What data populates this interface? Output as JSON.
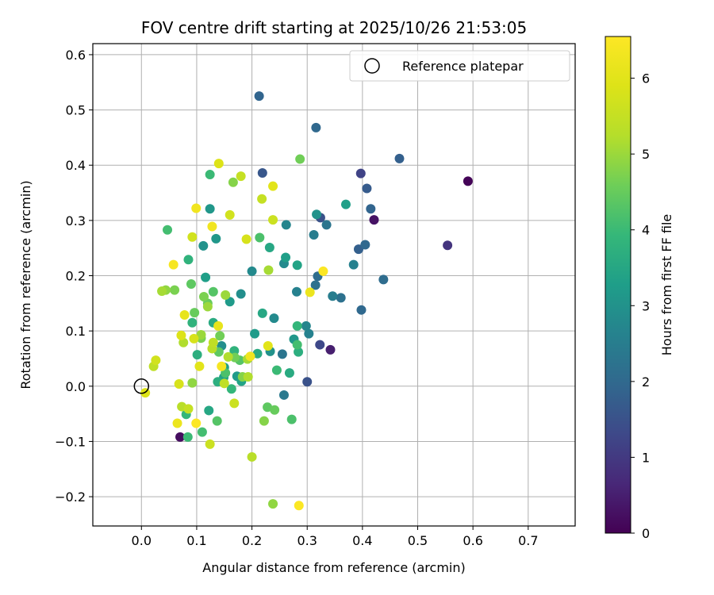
{
  "chart_data": {
    "type": "scatter",
    "title": "FOV centre drift starting at 2025/10/26 21:53:05",
    "xlabel": "Angular distance from reference (arcmin)",
    "ylabel": "Rotation from reference (arcmin)",
    "xlim": [
      -0.088,
      0.785
    ],
    "ylim": [
      -0.253,
      0.62
    ],
    "xticks": [
      0.0,
      0.1,
      0.2,
      0.3,
      0.4,
      0.5,
      0.6,
      0.7
    ],
    "xtick_labels": [
      "0.0",
      "0.1",
      "0.2",
      "0.3",
      "0.4",
      "0.5",
      "0.6",
      "0.7"
    ],
    "yticks": [
      -0.2,
      -0.1,
      0.0,
      0.1,
      0.2,
      0.3,
      0.4,
      0.5,
      0.6
    ],
    "ytick_labels": [
      "−0.2",
      "−0.1",
      "0.0",
      "0.1",
      "0.2",
      "0.3",
      "0.4",
      "0.5",
      "0.6"
    ],
    "grid": true,
    "legend": {
      "position": "top-right",
      "entries": [
        "Reference platepar"
      ]
    },
    "reference_point": {
      "x": 0.0,
      "y": 0.0
    },
    "colorbar": {
      "label": "Hours from first FF file",
      "range": [
        0,
        6.55
      ],
      "ticks": [
        0,
        1,
        2,
        3,
        4,
        5,
        6
      ],
      "tick_labels": [
        "0",
        "1",
        "2",
        "3",
        "4",
        "5",
        "6"
      ],
      "colormap": "viridis"
    },
    "series": [
      {
        "points": [
          {
            "x": 0.591,
            "y": 0.371,
            "c": 0.05
          },
          {
            "x": 0.07,
            "y": -0.092,
            "c": 0.2
          },
          {
            "x": 0.421,
            "y": 0.301,
            "c": 0.3
          },
          {
            "x": 0.342,
            "y": 0.066,
            "c": 0.5
          },
          {
            "x": 0.554,
            "y": 0.255,
            "c": 0.9
          },
          {
            "x": 0.397,
            "y": 0.385,
            "c": 1.2
          },
          {
            "x": 0.323,
            "y": 0.075,
            "c": 1.3
          },
          {
            "x": 0.3,
            "y": 0.008,
            "c": 1.5
          },
          {
            "x": 0.324,
            "y": 0.305,
            "c": 1.5
          },
          {
            "x": 0.219,
            "y": 0.386,
            "c": 1.6
          },
          {
            "x": 0.408,
            "y": 0.358,
            "c": 1.7
          },
          {
            "x": 0.467,
            "y": 0.412,
            "c": 1.8
          },
          {
            "x": 0.393,
            "y": 0.248,
            "c": 1.8
          },
          {
            "x": 0.415,
            "y": 0.321,
            "c": 1.9
          },
          {
            "x": 0.213,
            "y": 0.525,
            "c": 1.9
          },
          {
            "x": 0.316,
            "y": 0.468,
            "c": 2.0
          },
          {
            "x": 0.398,
            "y": 0.138,
            "c": 2.0
          },
          {
            "x": 0.405,
            "y": 0.256,
            "c": 2.0
          },
          {
            "x": 0.438,
            "y": 0.193,
            "c": 2.1
          },
          {
            "x": 0.319,
            "y": 0.199,
            "c": 2.1
          },
          {
            "x": 0.361,
            "y": 0.16,
            "c": 2.2
          },
          {
            "x": 0.315,
            "y": 0.183,
            "c": 2.2
          },
          {
            "x": 0.335,
            "y": 0.292,
            "c": 2.3
          },
          {
            "x": 0.255,
            "y": 0.058,
            "c": 2.3
          },
          {
            "x": 0.258,
            "y": -0.016,
            "c": 2.4
          },
          {
            "x": 0.346,
            "y": 0.163,
            "c": 2.5
          },
          {
            "x": 0.312,
            "y": 0.274,
            "c": 2.5
          },
          {
            "x": 0.384,
            "y": 0.22,
            "c": 2.6
          },
          {
            "x": 0.303,
            "y": 0.095,
            "c": 2.6
          },
          {
            "x": 0.281,
            "y": 0.171,
            "c": 2.6
          },
          {
            "x": 0.298,
            "y": 0.109,
            "c": 2.7
          },
          {
            "x": 0.262,
            "y": 0.292,
            "c": 2.7
          },
          {
            "x": 0.2,
            "y": 0.208,
            "c": 2.8
          },
          {
            "x": 0.258,
            "y": 0.222,
            "c": 2.8
          },
          {
            "x": 0.24,
            "y": 0.123,
            "c": 2.8
          },
          {
            "x": 0.18,
            "y": 0.167,
            "c": 2.9
          },
          {
            "x": 0.145,
            "y": 0.073,
            "c": 2.9
          },
          {
            "x": 0.233,
            "y": 0.063,
            "c": 3.0
          },
          {
            "x": 0.317,
            "y": 0.311,
            "c": 3.0
          },
          {
            "x": 0.112,
            "y": 0.254,
            "c": 3.0
          },
          {
            "x": 0.135,
            "y": 0.267,
            "c": 3.1
          },
          {
            "x": 0.124,
            "y": 0.321,
            "c": 3.1
          },
          {
            "x": 0.276,
            "y": 0.085,
            "c": 3.1
          },
          {
            "x": 0.173,
            "y": 0.018,
            "c": 3.2
          },
          {
            "x": 0.16,
            "y": 0.153,
            "c": 3.2
          },
          {
            "x": 0.205,
            "y": 0.095,
            "c": 3.2
          },
          {
            "x": 0.15,
            "y": 0.034,
            "c": 3.3
          },
          {
            "x": 0.37,
            "y": 0.329,
            "c": 3.3
          },
          {
            "x": 0.116,
            "y": 0.197,
            "c": 3.3
          },
          {
            "x": 0.261,
            "y": 0.233,
            "c": 3.3
          },
          {
            "x": 0.282,
            "y": 0.219,
            "c": 3.4
          },
          {
            "x": 0.181,
            "y": 0.009,
            "c": 3.4
          },
          {
            "x": 0.149,
            "y": 0.016,
            "c": 3.4
          },
          {
            "x": 0.219,
            "y": 0.132,
            "c": 3.5
          },
          {
            "x": 0.122,
            "y": -0.044,
            "c": 3.5
          },
          {
            "x": 0.232,
            "y": 0.251,
            "c": 3.5
          },
          {
            "x": 0.13,
            "y": 0.115,
            "c": 3.6
          },
          {
            "x": 0.268,
            "y": 0.024,
            "c": 3.6
          },
          {
            "x": 0.21,
            "y": 0.059,
            "c": 3.6
          },
          {
            "x": 0.101,
            "y": 0.057,
            "c": 3.7
          },
          {
            "x": 0.284,
            "y": 0.062,
            "c": 3.7
          },
          {
            "x": 0.138,
            "y": 0.008,
            "c": 3.7
          },
          {
            "x": 0.168,
            "y": 0.064,
            "c": 3.8
          },
          {
            "x": 0.085,
            "y": 0.229,
            "c": 3.8
          },
          {
            "x": 0.092,
            "y": 0.115,
            "c": 3.8
          },
          {
            "x": 0.282,
            "y": 0.109,
            "c": 3.9
          },
          {
            "x": 0.081,
            "y": -0.051,
            "c": 3.9
          },
          {
            "x": 0.163,
            "y": -0.005,
            "c": 3.9
          },
          {
            "x": 0.084,
            "y": -0.092,
            "c": 4.0
          },
          {
            "x": 0.245,
            "y": 0.029,
            "c": 4.0
          },
          {
            "x": 0.124,
            "y": 0.383,
            "c": 4.0
          },
          {
            "x": 0.11,
            "y": -0.083,
            "c": 4.1
          },
          {
            "x": 0.047,
            "y": 0.283,
            "c": 4.1
          },
          {
            "x": 0.282,
            "y": 0.075,
            "c": 4.1
          },
          {
            "x": 0.152,
            "y": 0.024,
            "c": 4.2
          },
          {
            "x": 0.214,
            "y": 0.269,
            "c": 4.2
          },
          {
            "x": 0.272,
            "y": -0.06,
            "c": 4.2
          },
          {
            "x": 0.13,
            "y": 0.171,
            "c": 4.3
          },
          {
            "x": 0.178,
            "y": 0.047,
            "c": 4.3
          },
          {
            "x": 0.137,
            "y": -0.063,
            "c": 4.3
          },
          {
            "x": 0.228,
            "y": -0.038,
            "c": 4.4
          },
          {
            "x": 0.09,
            "y": 0.185,
            "c": 4.4
          },
          {
            "x": 0.14,
            "y": 0.062,
            "c": 4.4
          },
          {
            "x": 0.12,
            "y": 0.15,
            "c": 4.5
          },
          {
            "x": 0.096,
            "y": 0.133,
            "c": 4.5
          },
          {
            "x": 0.241,
            "y": -0.043,
            "c": 4.5
          },
          {
            "x": 0.169,
            "y": 0.052,
            "c": 4.6
          },
          {
            "x": 0.142,
            "y": 0.091,
            "c": 4.6
          },
          {
            "x": 0.287,
            "y": 0.411,
            "c": 4.6
          },
          {
            "x": 0.113,
            "y": 0.162,
            "c": 4.7
          },
          {
            "x": 0.108,
            "y": 0.087,
            "c": 4.7
          },
          {
            "x": 0.06,
            "y": 0.174,
            "c": 4.7
          },
          {
            "x": 0.222,
            "y": -0.063,
            "c": 4.8
          },
          {
            "x": 0.166,
            "y": 0.369,
            "c": 4.8
          },
          {
            "x": 0.183,
            "y": 0.017,
            "c": 4.8
          },
          {
            "x": 0.238,
            "y": -0.213,
            "c": 4.9
          },
          {
            "x": 0.044,
            "y": 0.174,
            "c": 4.9
          },
          {
            "x": 0.092,
            "y": 0.006,
            "c": 4.9
          },
          {
            "x": 0.152,
            "y": 0.165,
            "c": 5.0
          },
          {
            "x": 0.12,
            "y": 0.144,
            "c": 5.0
          },
          {
            "x": 0.108,
            "y": 0.093,
            "c": 5.0
          },
          {
            "x": 0.192,
            "y": 0.049,
            "c": 5.1
          },
          {
            "x": 0.23,
            "y": 0.21,
            "c": 5.1
          },
          {
            "x": 0.037,
            "y": 0.172,
            "c": 5.1
          },
          {
            "x": 0.193,
            "y": 0.017,
            "c": 5.2
          },
          {
            "x": 0.076,
            "y": 0.079,
            "c": 5.2
          },
          {
            "x": 0.157,
            "y": 0.053,
            "c": 5.2
          },
          {
            "x": 0.128,
            "y": 0.068,
            "c": 5.3
          },
          {
            "x": 0.073,
            "y": -0.037,
            "c": 5.3
          },
          {
            "x": 0.2,
            "y": -0.128,
            "c": 5.3
          },
          {
            "x": 0.022,
            "y": 0.036,
            "c": 5.4
          },
          {
            "x": 0.15,
            "y": 0.005,
            "c": 5.4
          },
          {
            "x": 0.13,
            "y": 0.079,
            "c": 5.4
          },
          {
            "x": 0.085,
            "y": -0.041,
            "c": 5.5
          },
          {
            "x": 0.218,
            "y": 0.339,
            "c": 5.5
          },
          {
            "x": 0.18,
            "y": 0.38,
            "c": 5.5
          },
          {
            "x": 0.124,
            "y": -0.105,
            "c": 5.6
          },
          {
            "x": 0.168,
            "y": -0.031,
            "c": 5.6
          },
          {
            "x": 0.238,
            "y": 0.301,
            "c": 5.6
          },
          {
            "x": 0.092,
            "y": 0.27,
            "c": 5.7
          },
          {
            "x": 0.16,
            "y": 0.31,
            "c": 5.7
          },
          {
            "x": 0.026,
            "y": 0.047,
            "c": 5.7
          },
          {
            "x": 0.068,
            "y": 0.004,
            "c": 5.8
          },
          {
            "x": 0.095,
            "y": 0.086,
            "c": 5.8
          },
          {
            "x": 0.19,
            "y": 0.266,
            "c": 5.8
          },
          {
            "x": 0.14,
            "y": 0.403,
            "c": 5.9
          },
          {
            "x": 0.007,
            "y": -0.012,
            "c": 5.9
          },
          {
            "x": 0.072,
            "y": 0.092,
            "c": 5.9
          },
          {
            "x": 0.105,
            "y": 0.036,
            "c": 6.0
          },
          {
            "x": 0.238,
            "y": 0.362,
            "c": 6.0
          },
          {
            "x": 0.229,
            "y": 0.073,
            "c": 6.0
          },
          {
            "x": 0.078,
            "y": 0.129,
            "c": 6.1
          },
          {
            "x": 0.139,
            "y": 0.109,
            "c": 6.1
          },
          {
            "x": 0.305,
            "y": 0.17,
            "c": 6.2
          },
          {
            "x": 0.065,
            "y": -0.067,
            "c": 6.2
          },
          {
            "x": 0.197,
            "y": 0.054,
            "c": 6.3
          },
          {
            "x": 0.128,
            "y": 0.289,
            "c": 6.3
          },
          {
            "x": 0.099,
            "y": 0.322,
            "c": 6.3
          },
          {
            "x": 0.058,
            "y": 0.22,
            "c": 6.4
          },
          {
            "x": 0.145,
            "y": 0.036,
            "c": 6.4
          },
          {
            "x": 0.329,
            "y": 0.208,
            "c": 6.5
          },
          {
            "x": 0.285,
            "y": -0.216,
            "c": 6.5
          },
          {
            "x": 0.099,
            "y": -0.067,
            "c": 6.5
          }
        ]
      }
    ]
  }
}
